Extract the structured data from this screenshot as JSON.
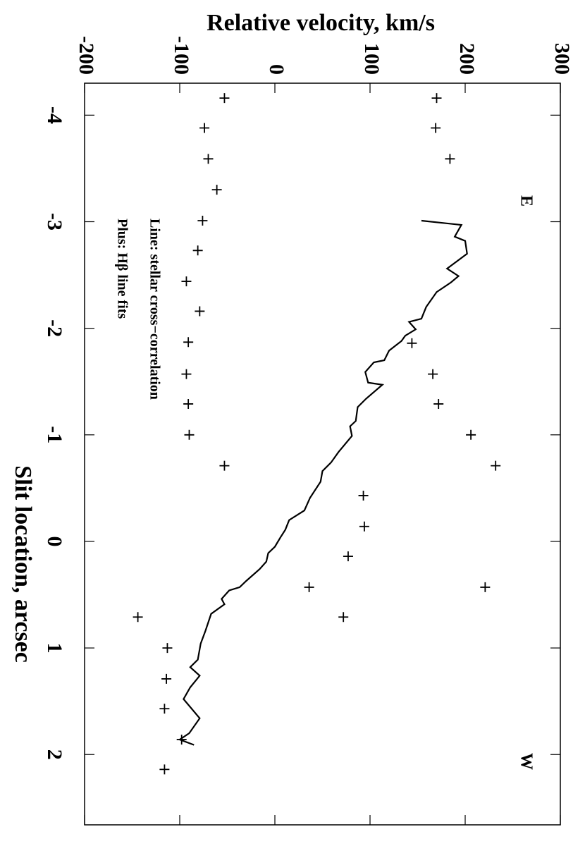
{
  "chart_data": {
    "type": "line",
    "ylabel": "Relative velocity, km/s",
    "xlabel": "Slit location, arcsec",
    "annotations": [
      "E",
      "W"
    ],
    "xlim": [
      -4.3,
      2.66
    ],
    "xticks": [
      -4,
      -3,
      -2,
      -1,
      0,
      1,
      2
    ],
    "ylim": [
      -200,
      300
    ],
    "yticks": [
      -200,
      -100,
      0,
      100,
      200,
      300
    ],
    "color": "#000000",
    "series": [
      {
        "name": "Line: stellar cross−correlation",
        "type": "line",
        "x": [
          -3.01,
          -2.97,
          -2.86,
          -2.82,
          -2.7,
          -2.56,
          -2.49,
          -2.43,
          -2.34,
          -2.2,
          -2.09,
          -2.06,
          -1.99,
          -1.93,
          -1.88,
          -1.79,
          -1.7,
          -1.68,
          -1.59,
          -1.49,
          -1.47,
          -1.34,
          -1.26,
          -1.13,
          -1.08,
          -0.99,
          -0.84,
          -0.74,
          -0.66,
          -0.56,
          -0.41,
          -0.29,
          -0.2,
          -0.11,
          -0.04,
          0.05,
          0.11,
          0.19,
          0.26,
          0.37,
          0.43,
          0.46,
          0.54,
          0.59,
          0.68,
          0.84,
          0.96,
          1.11,
          1.18,
          1.26,
          1.37,
          1.48,
          1.66,
          1.8,
          1.86,
          1.91
        ],
        "values": [
          154,
          196,
          189,
          200,
          202,
          181,
          193,
          185,
          170,
          159,
          154,
          141,
          148,
          137,
          133,
          120,
          115,
          104,
          95,
          98,
          113,
          96,
          87,
          85,
          79,
          81,
          67,
          59,
          50,
          48,
          37,
          31,
          15,
          11,
          6,
          0,
          -7,
          -9,
          -16,
          -30,
          -37,
          -48,
          -56,
          -53,
          -67,
          -73,
          -78,
          -81,
          -89,
          -79,
          -89,
          -96,
          -79,
          -90,
          -100,
          -85
        ]
      },
      {
        "name": "Plus: Hβ line fits",
        "type": "scatter",
        "x": [
          -4.16,
          -4.16,
          -3.88,
          -3.88,
          -3.59,
          -3.59,
          -3.3,
          -3.01,
          -2.73,
          -2.44,
          -2.16,
          -1.86,
          -1.87,
          -1.57,
          -1.57,
          -1.29,
          -1.29,
          -1.0,
          -1.0,
          -0.71,
          -0.71,
          -0.43,
          -0.14,
          0.14,
          0.43,
          0.43,
          0.71,
          0.71,
          1.0,
          1.29,
          1.57,
          1.86,
          2.14
        ],
        "values": [
          -53,
          170,
          -74,
          169,
          -70,
          184,
          -61,
          -76,
          -81,
          -93,
          -79,
          144,
          -91,
          166,
          -93,
          172,
          -91,
          206,
          -90,
          232,
          -53,
          93,
          94,
          77,
          36,
          221,
          72,
          -144,
          -113,
          -114,
          -116,
          -98,
          -116
        ]
      }
    ]
  }
}
